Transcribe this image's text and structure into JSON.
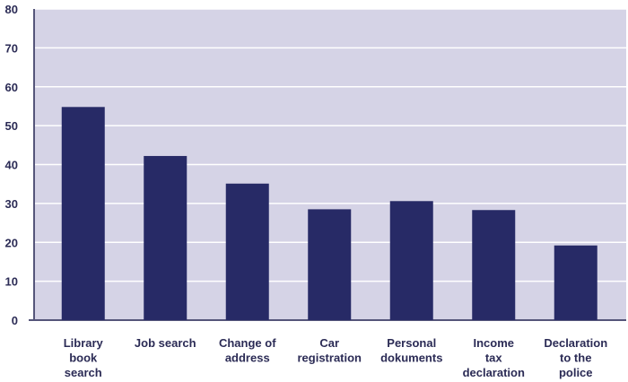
{
  "chart_data": {
    "type": "bar",
    "categories": [
      "Library\nbook\nsearch",
      "Job search",
      "Change of\naddress",
      "Car\nregistration",
      "Personal\ndokuments",
      "Income\ntax\ndeclaration",
      "Declaration\nto the\npolice"
    ],
    "values": [
      54.8,
      42.2,
      35.1,
      28.5,
      30.6,
      28.3,
      19.2
    ],
    "color": "#272a66",
    "ylim": [
      0,
      80
    ],
    "yticks": [
      0,
      10,
      20,
      30,
      40,
      50,
      60,
      70,
      80
    ],
    "grid": true
  }
}
